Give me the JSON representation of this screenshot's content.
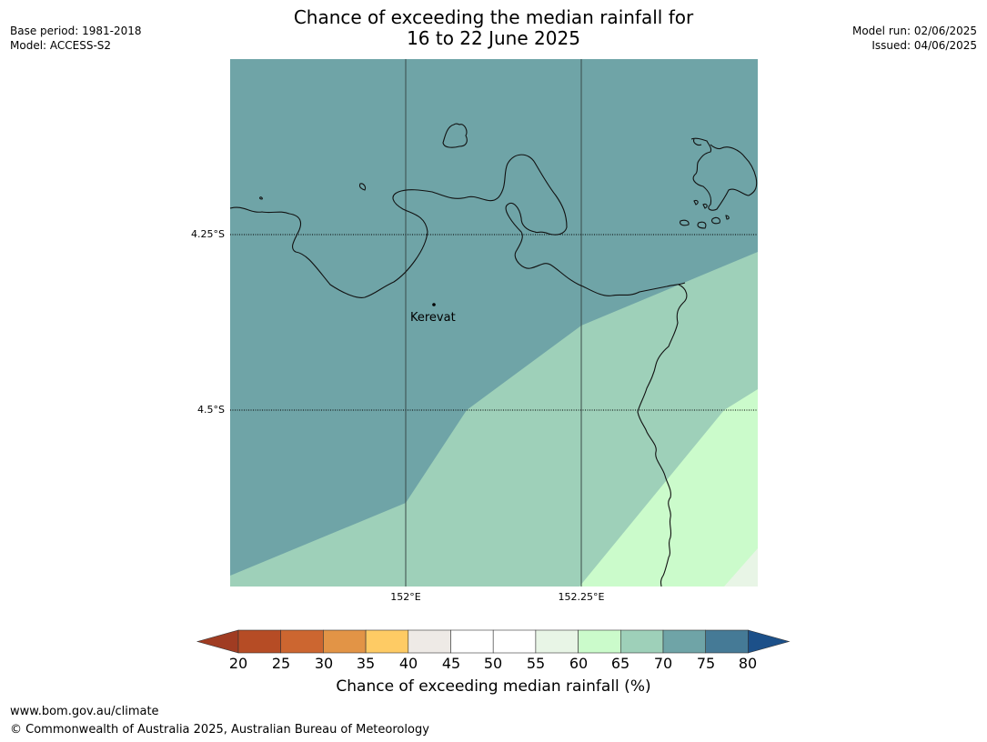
{
  "title": {
    "line1": "Chance of exceeding the median rainfall for",
    "line2": "16 to 22 June 2025"
  },
  "meta": {
    "base_period": "Base period: 1981-2018",
    "model": "Model: ACCESS-S2",
    "model_run": "Model run: 02/06/2025",
    "issued": "Issued: 04/06/2025"
  },
  "map": {
    "place_label": "Kerevat",
    "lat_labels": [
      "4.25°S",
      "4.5°S"
    ],
    "lon_labels": [
      "152°E",
      "152.25°E"
    ],
    "zone_colors": {
      "70_75": "#6fa4a7",
      "65_70": "#9ed0b9",
      "60_65": "#cbfbcb",
      "55_60": "#e8f5e6"
    }
  },
  "colorbar": {
    "title": "Chance of exceeding median rainfall (%)",
    "ticks": [
      "20",
      "25",
      "30",
      "35",
      "40",
      "45",
      "50",
      "55",
      "60",
      "65",
      "70",
      "75",
      "80"
    ],
    "colors": [
      "#a03c22",
      "#b64c25",
      "#cc6630",
      "#e29446",
      "#fecb64",
      "#eeeae6",
      "#ffffff",
      "#ffffff",
      "#e8f5e6",
      "#cbfbcb",
      "#9ed0b9",
      "#6fa4a7",
      "#457a96",
      "#1c5089"
    ]
  },
  "footer": {
    "url": "www.bom.gov.au/climate",
    "copyright": "© Commonwealth of Australia 2025, Australian Bureau of Meteorology"
  }
}
